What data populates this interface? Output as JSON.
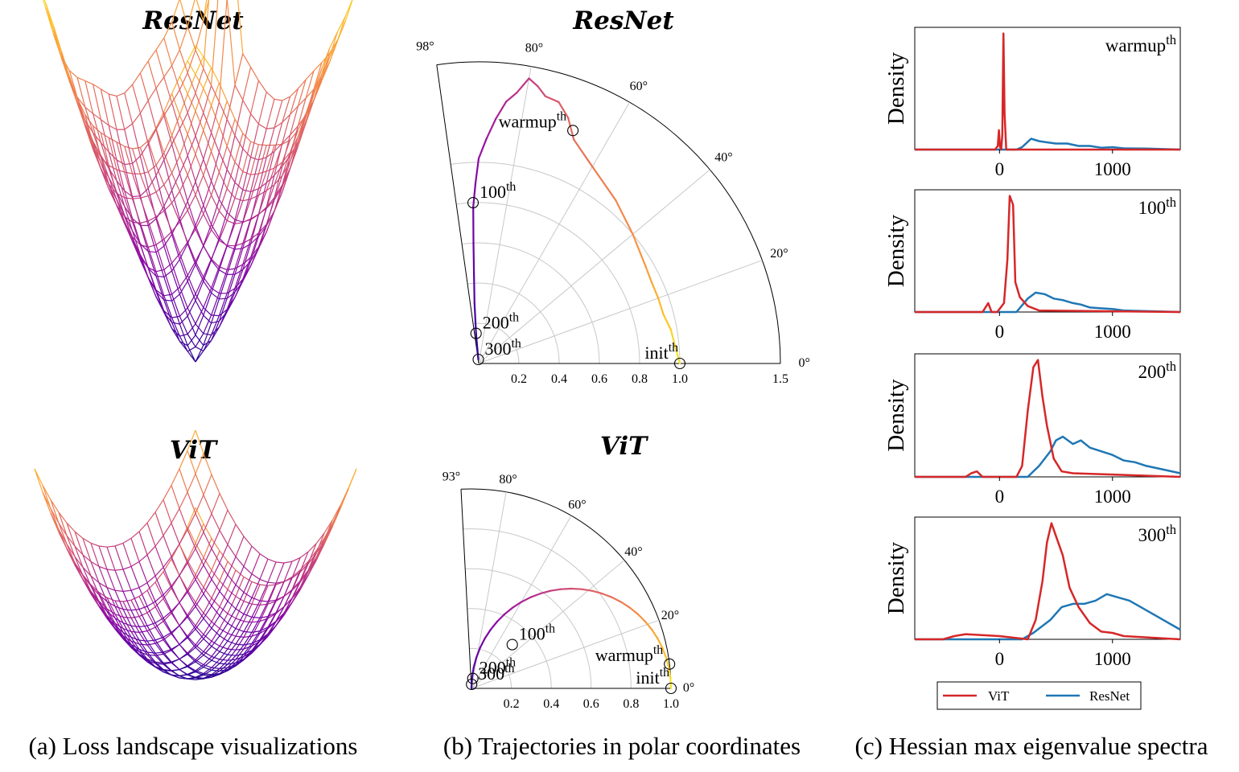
{
  "captions": {
    "a": "(a) Loss landscape visualizations",
    "b": "(b) Trajectories in polar coordinates",
    "c": "(c) Hessian max eigenvalue spectra"
  },
  "chart_data": [
    {
      "type": "surface",
      "panel": "a-top",
      "title": "ResNet",
      "colormap": "plasma",
      "shape": "sharp, non-convex bowl with spiky rim"
    },
    {
      "type": "surface",
      "panel": "a-bottom",
      "title": "ViT",
      "colormap": "plasma",
      "shape": "smooth, flat convex bowl"
    },
    {
      "type": "line",
      "panel": "b-top",
      "coords": "polar",
      "title": "ResNet",
      "theta_range_deg": [
        0,
        98
      ],
      "r_range": [
        0,
        1.5
      ],
      "theta_ticks": [
        "0°",
        "20°",
        "40°",
        "60°",
        "80°",
        "98°"
      ],
      "r_ticks": [
        "0.2",
        "0.4",
        "0.6",
        "0.8",
        "1.0",
        "1.5"
      ],
      "annotations": [
        {
          "label": "init",
          "sup": "th",
          "theta": 0,
          "r": 1.0
        },
        {
          "label": "warmup",
          "sup": "th",
          "theta": 68,
          "r": 1.25
        },
        {
          "label": "100",
          "sup": "th",
          "theta": 92,
          "r": 0.8
        },
        {
          "label": "200",
          "sup": "th",
          "theta": 95,
          "r": 0.15
        },
        {
          "label": "300",
          "sup": "th",
          "theta": 96,
          "r": 0.02
        }
      ],
      "trajectory": [
        [
          0,
          1.0
        ],
        [
          5,
          0.98
        ],
        [
          10,
          0.97
        ],
        [
          15,
          0.95
        ],
        [
          20,
          0.95
        ],
        [
          25,
          0.95
        ],
        [
          30,
          0.96
        ],
        [
          40,
          1.0
        ],
        [
          50,
          1.06
        ],
        [
          60,
          1.13
        ],
        [
          67,
          1.21
        ],
        [
          70,
          1.3
        ],
        [
          73,
          1.36
        ],
        [
          76,
          1.37
        ],
        [
          78,
          1.41
        ],
        [
          80,
          1.44
        ],
        [
          82,
          1.36
        ],
        [
          84,
          1.31
        ],
        [
          86,
          1.22
        ],
        [
          88,
          1.12
        ],
        [
          90,
          1.02
        ],
        [
          91,
          0.9
        ],
        [
          92,
          0.78
        ],
        [
          92.5,
          0.6
        ],
        [
          93,
          0.45
        ],
        [
          94,
          0.3
        ],
        [
          95,
          0.15
        ],
        [
          96,
          0.02
        ]
      ]
    },
    {
      "type": "line",
      "panel": "b-bottom",
      "coords": "polar",
      "title": "ViT",
      "theta_range_deg": [
        0,
        93
      ],
      "r_range": [
        0,
        1.0
      ],
      "theta_ticks": [
        "0°",
        "20°",
        "40°",
        "60°",
        "80°",
        "93°"
      ],
      "r_ticks": [
        "0.2",
        "0.4",
        "0.6",
        "0.8",
        "1.0"
      ],
      "annotations": [
        {
          "label": "init",
          "sup": "th",
          "theta": 0,
          "r": 1.0
        },
        {
          "label": "warmup",
          "sup": "th",
          "theta": 7,
          "r": 1.0
        },
        {
          "label": "100",
          "sup": "th",
          "theta": 47,
          "r": 0.3
        },
        {
          "label": "200",
          "sup": "th",
          "theta": 82,
          "r": 0.05
        },
        {
          "label": "300",
          "sup": "th",
          "theta": 88,
          "r": 0.02
        }
      ]
    },
    {
      "type": "density",
      "panel": "c",
      "ylabel": "Density",
      "xticks": [
        "0",
        "1000"
      ],
      "x_range": [
        -750,
        1600
      ],
      "legend": [
        "ViT",
        "ResNet"
      ],
      "series_colors": {
        "ViT": "#d62728",
        "ResNet": "#1f77b4"
      },
      "subplots": [
        {
          "label": "warmup",
          "sup": "th",
          "ViT": [
            [
              -750,
              0
            ],
            [
              -40,
              0
            ],
            [
              -15,
              0.03
            ],
            [
              -5,
              0.16
            ],
            [
              5,
              0.02
            ],
            [
              15,
              0
            ],
            [
              25,
              0.12
            ],
            [
              35,
              0.96
            ],
            [
              45,
              0.3
            ],
            [
              60,
              0
            ],
            [
              1600,
              0
            ]
          ],
          "ResNet": [
            [
              -750,
              0
            ],
            [
              150,
              0
            ],
            [
              200,
              0.02
            ],
            [
              280,
              0.09
            ],
            [
              350,
              0.07
            ],
            [
              420,
              0.06
            ],
            [
              500,
              0.05
            ],
            [
              600,
              0.05
            ],
            [
              700,
              0.03
            ],
            [
              800,
              0.03
            ],
            [
              900,
              0.015
            ],
            [
              1000,
              0.02
            ],
            [
              1100,
              0.01
            ],
            [
              1300,
              0.008
            ],
            [
              1600,
              0
            ]
          ]
        },
        {
          "label": "100",
          "sup": "th",
          "ViT": [
            [
              -750,
              0
            ],
            [
              -150,
              0
            ],
            [
              -100,
              0.06
            ],
            [
              -70,
              0
            ],
            [
              -20,
              0
            ],
            [
              40,
              0.06
            ],
            [
              70,
              0.35
            ],
            [
              90,
              0.78
            ],
            [
              120,
              0.72
            ],
            [
              140,
              0.2
            ],
            [
              180,
              0.1
            ],
            [
              250,
              0.04
            ],
            [
              350,
              0.01
            ],
            [
              1600,
              0
            ]
          ],
          "ResNet": [
            [
              -750,
              0
            ],
            [
              150,
              0
            ],
            [
              250,
              0.09
            ],
            [
              320,
              0.13
            ],
            [
              400,
              0.12
            ],
            [
              480,
              0.09
            ],
            [
              560,
              0.08
            ],
            [
              650,
              0.06
            ],
            [
              720,
              0.05
            ],
            [
              800,
              0.03
            ],
            [
              900,
              0.025
            ],
            [
              1000,
              0.02
            ],
            [
              1100,
              0.01
            ],
            [
              1200,
              0.008
            ],
            [
              1600,
              0
            ]
          ]
        },
        {
          "label": "200",
          "sup": "th",
          "ViT": [
            [
              -750,
              0
            ],
            [
              -300,
              0
            ],
            [
              -250,
              0.01
            ],
            [
              -200,
              0.015
            ],
            [
              -150,
              0
            ],
            [
              150,
              0
            ],
            [
              200,
              0.03
            ],
            [
              250,
              0.18
            ],
            [
              300,
              0.3
            ],
            [
              340,
              0.32
            ],
            [
              380,
              0.22
            ],
            [
              420,
              0.14
            ],
            [
              480,
              0.05
            ],
            [
              550,
              0.015
            ],
            [
              650,
              0.01
            ],
            [
              1600,
              0
            ]
          ],
          "ResNet": [
            [
              -750,
              0
            ],
            [
              250,
              0
            ],
            [
              350,
              0.03
            ],
            [
              450,
              0.07
            ],
            [
              500,
              0.1
            ],
            [
              560,
              0.11
            ],
            [
              650,
              0.09
            ],
            [
              720,
              0.1
            ],
            [
              800,
              0.08
            ],
            [
              900,
              0.07
            ],
            [
              1000,
              0.06
            ],
            [
              1100,
              0.045
            ],
            [
              1200,
              0.04
            ],
            [
              1300,
              0.03
            ],
            [
              1450,
              0.02
            ],
            [
              1600,
              0.01
            ]
          ]
        },
        {
          "label": "300",
          "sup": "th",
          "ViT": [
            [
              -750,
              0
            ],
            [
              -500,
              0
            ],
            [
              -400,
              0.005
            ],
            [
              -300,
              0.008
            ],
            [
              0,
              0.005
            ],
            [
              250,
              0
            ],
            [
              320,
              0.03
            ],
            [
              380,
              0.09
            ],
            [
              420,
              0.15
            ],
            [
              460,
              0.18
            ],
            [
              500,
              0.16
            ],
            [
              560,
              0.13
            ],
            [
              620,
              0.08
            ],
            [
              700,
              0.05
            ],
            [
              800,
              0.025
            ],
            [
              900,
              0.012
            ],
            [
              1000,
              0.01
            ],
            [
              1100,
              0.005
            ],
            [
              1600,
              0
            ]
          ],
          "ResNet": [
            [
              -750,
              0
            ],
            [
              200,
              0
            ],
            [
              300,
              0.01
            ],
            [
              450,
              0.03
            ],
            [
              550,
              0.05
            ],
            [
              650,
              0.055
            ],
            [
              750,
              0.055
            ],
            [
              850,
              0.06
            ],
            [
              950,
              0.07
            ],
            [
              1050,
              0.065
            ],
            [
              1150,
              0.06
            ],
            [
              1250,
              0.05
            ],
            [
              1350,
              0.04
            ],
            [
              1450,
              0.03
            ],
            [
              1550,
              0.02
            ],
            [
              1600,
              0.015
            ]
          ]
        }
      ]
    }
  ]
}
